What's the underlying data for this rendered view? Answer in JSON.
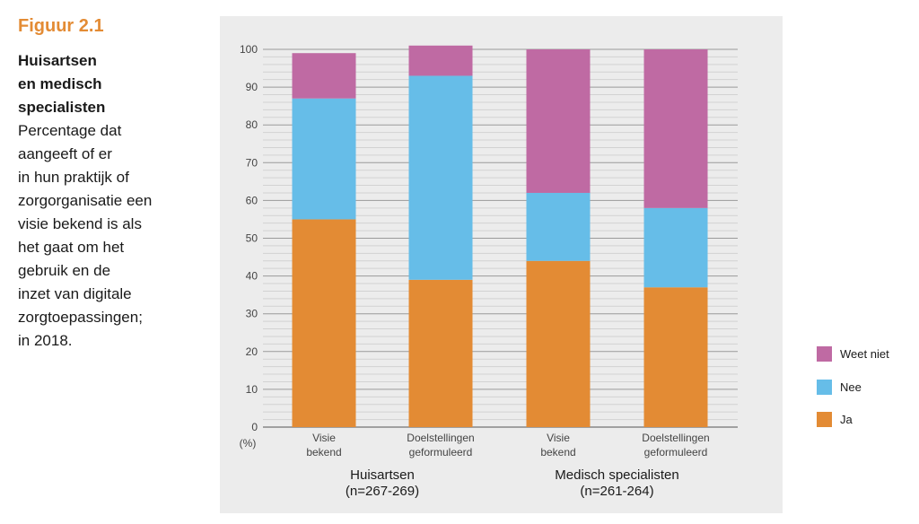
{
  "figure": {
    "number": "Figuur 2.1",
    "title": "Huisartsen\nen medisch\nspecialisten",
    "description": "Percentage dat\naangeeft of er\nin hun praktijk of\nzorgorganisatie een\nvisie bekend is als\nhet gaat om het\ngebruik en de\ninzet van digitale\nzorgtoepassingen;\nin 2018."
  },
  "colors": {
    "ja": "#e38b34",
    "nee": "#66bde8",
    "weet_niet": "#bf6aa3",
    "grid": "#bdbdbd",
    "axis": "#555555",
    "panel": "#ececec"
  },
  "chart_data": {
    "type": "bar",
    "stacked": true,
    "ylabel": "(%)",
    "ylim": [
      0,
      100
    ],
    "yticks": [
      0,
      10,
      20,
      30,
      40,
      50,
      60,
      70,
      80,
      90,
      100
    ],
    "categories": [
      "Visie\nbekend",
      "Doelstellingen\ngeformuleerd",
      "Visie\nbekend",
      "Doelstellingen\ngeformuleerd"
    ],
    "groups": [
      {
        "label": "Huisartsen",
        "sublabel": "(n=267-269)",
        "categories": [
          0,
          1
        ]
      },
      {
        "label": "Medisch specialisten",
        "sublabel": "(n=261-264)",
        "categories": [
          2,
          3
        ]
      }
    ],
    "series": [
      {
        "name": "Ja",
        "color_key": "ja",
        "values": [
          55,
          39,
          44,
          37
        ]
      },
      {
        "name": "Nee",
        "color_key": "nee",
        "values": [
          32,
          54,
          18,
          21
        ]
      },
      {
        "name": "Weet niet",
        "color_key": "weet_niet",
        "values": [
          12,
          8,
          38,
          42
        ]
      }
    ],
    "legend": {
      "position": "right",
      "order": [
        "Weet niet",
        "Nee",
        "Ja"
      ]
    },
    "grid": true
  }
}
